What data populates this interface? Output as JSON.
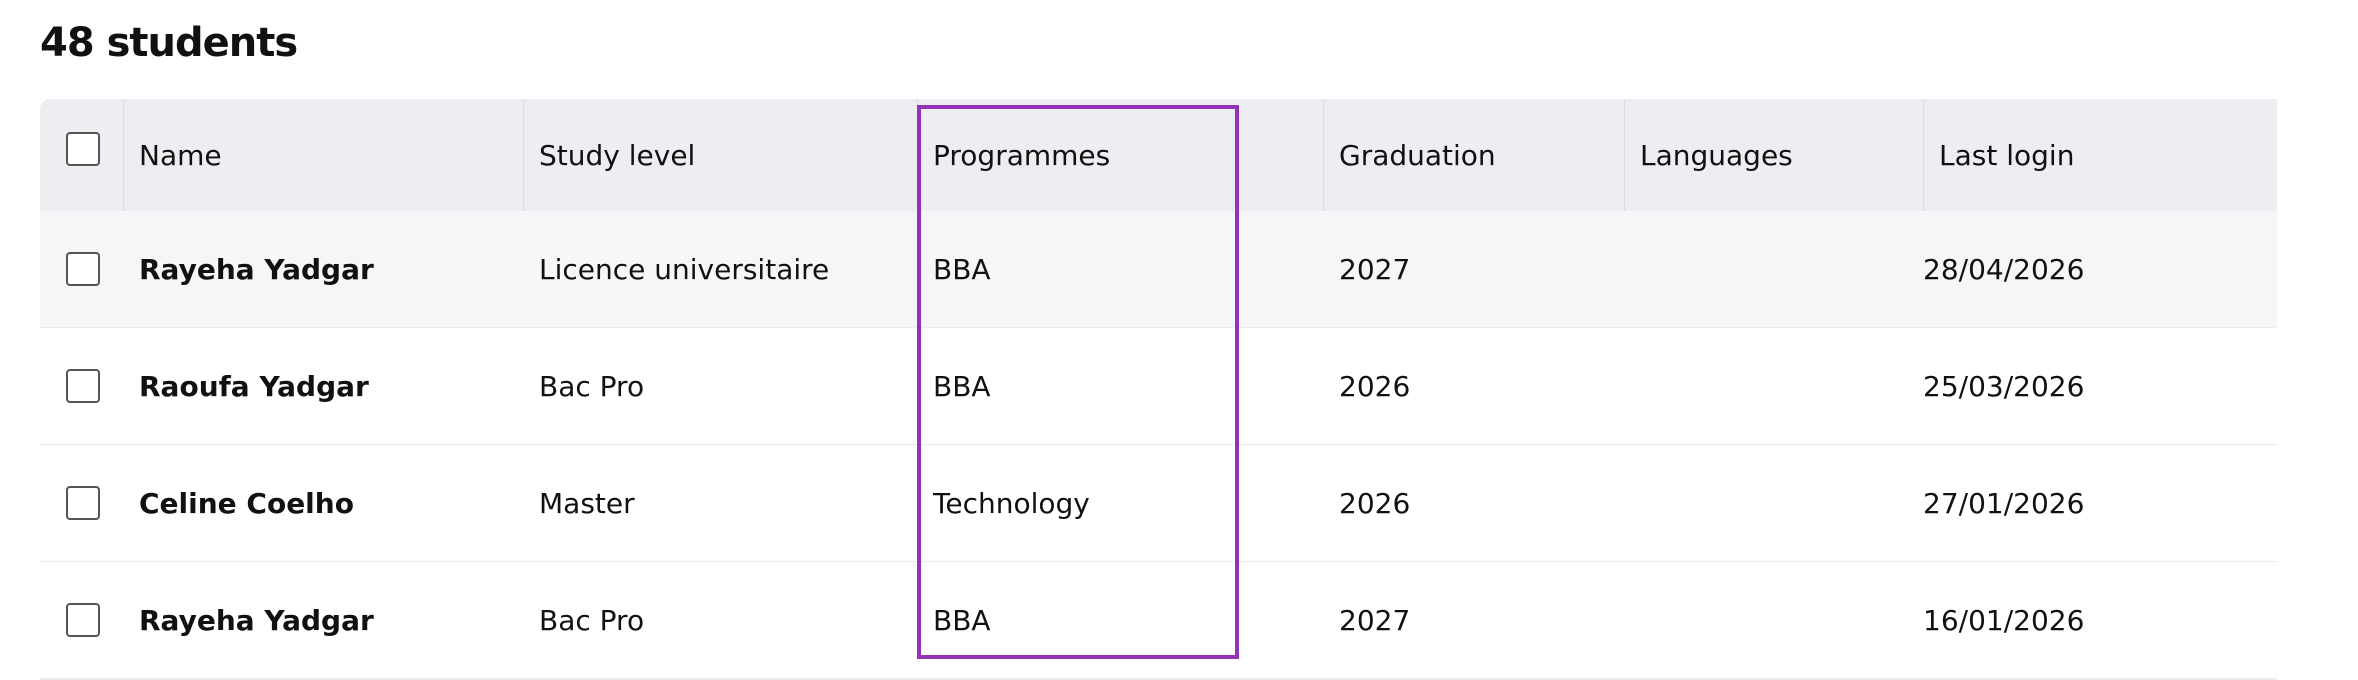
{
  "header": {
    "title": "48 students"
  },
  "table": {
    "columns": [
      "Name",
      "Study level",
      "Programmes",
      "Graduation",
      "Languages",
      "Last login"
    ],
    "rows": [
      {
        "name": "Rayeha Yadgar",
        "study_level": "Licence universitaire",
        "programme": "BBA",
        "graduation": "2027",
        "last_login": "28/04/2026"
      },
      {
        "name": "Raoufa Yadgar",
        "study_level": "Bac Pro",
        "programme": "BBA",
        "graduation": "2026",
        "last_login": "25/03/2026"
      },
      {
        "name": "Celine Coelho",
        "study_level": "Master",
        "programme": "Technology",
        "graduation": "2026",
        "last_login": "27/01/2026"
      },
      {
        "name": "Rayeha Yadgar",
        "study_level": "Bac Pro",
        "programme": "BBA",
        "graduation": "2027",
        "last_login": "16/01/2026"
      }
    ]
  }
}
